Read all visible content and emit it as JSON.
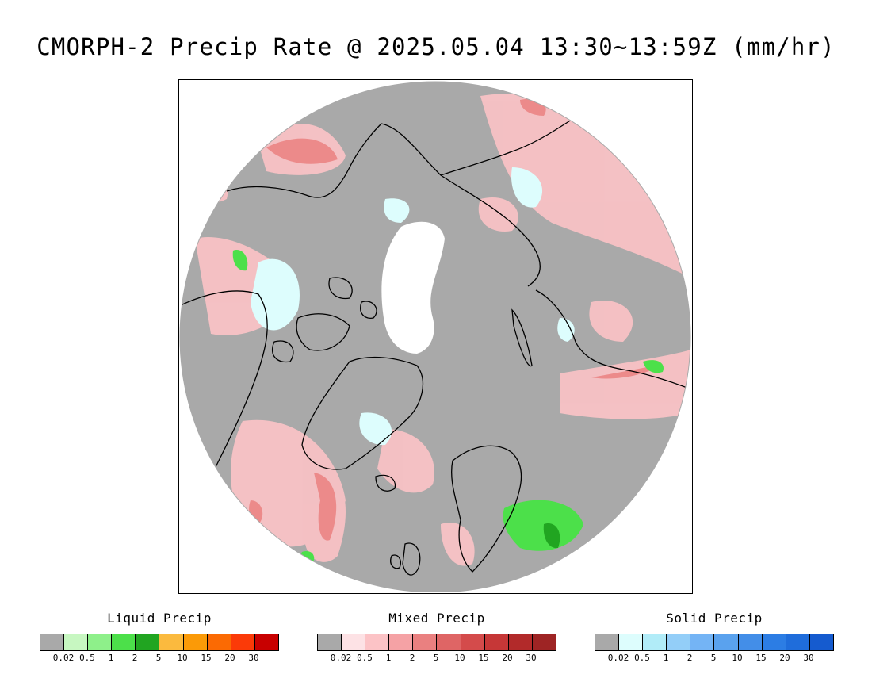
{
  "title": "CMORPH-2 Precip Rate @ 2025.05.04 13:30~13:59Z (mm/hr)",
  "map": {
    "background_color": "#a9a9a9",
    "no_data_color": "#ffffff",
    "coastline_color": "#000000"
  },
  "legends": [
    {
      "id": "liquid",
      "title": "Liquid Precip",
      "colors": [
        "#a9a9a9",
        "#c7f7c1",
        "#8ef08a",
        "#4ce04a",
        "#21a521",
        "#fbba3e",
        "#fb9a07",
        "#fb6a03",
        "#fb3a08",
        "#c80000"
      ],
      "ticks": [
        "0.02",
        "0.5",
        "1",
        "2",
        "5",
        "10",
        "15",
        "20",
        "30"
      ]
    },
    {
      "id": "mixed",
      "title": "Mixed Precip",
      "colors": [
        "#a9a9a9",
        "#fde2e5",
        "#fcc3c6",
        "#f5a2a5",
        "#ea8080",
        "#df6565",
        "#d44b4b",
        "#c63737",
        "#b22a2a",
        "#9e2424"
      ],
      "ticks": [
        "0.02",
        "0.5",
        "1",
        "2",
        "5",
        "10",
        "15",
        "20",
        "30"
      ]
    },
    {
      "id": "solid",
      "title": "Solid Precip",
      "colors": [
        "#a9a9a9",
        "#ddfdfd",
        "#b1ecf8",
        "#93cef8",
        "#74b4f5",
        "#5aa2ee",
        "#438ee8",
        "#2c7de4",
        "#1f6ddb",
        "#155bcf"
      ],
      "ticks": [
        "0.02",
        "0.5",
        "1",
        "2",
        "5",
        "10",
        "15",
        "20",
        "30"
      ]
    }
  ]
}
